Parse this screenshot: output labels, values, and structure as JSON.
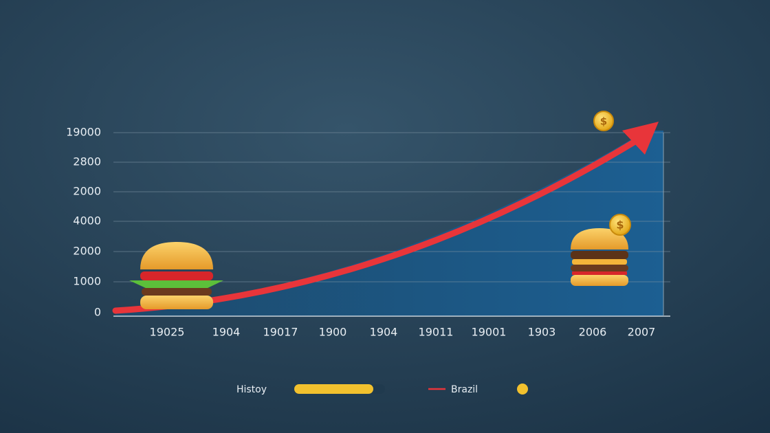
{
  "axes": {
    "y_labels": [
      "19000",
      "2800",
      "2000",
      "4000",
      "2000",
      "1000",
      "0"
    ],
    "x_labels": [
      "19025",
      "1904",
      "19017",
      "1900",
      "1904",
      "19011",
      "19001",
      "1903",
      "2006",
      "2007"
    ]
  },
  "legend": {
    "items": [
      "Histoy",
      "Brazil"
    ]
  }
}
